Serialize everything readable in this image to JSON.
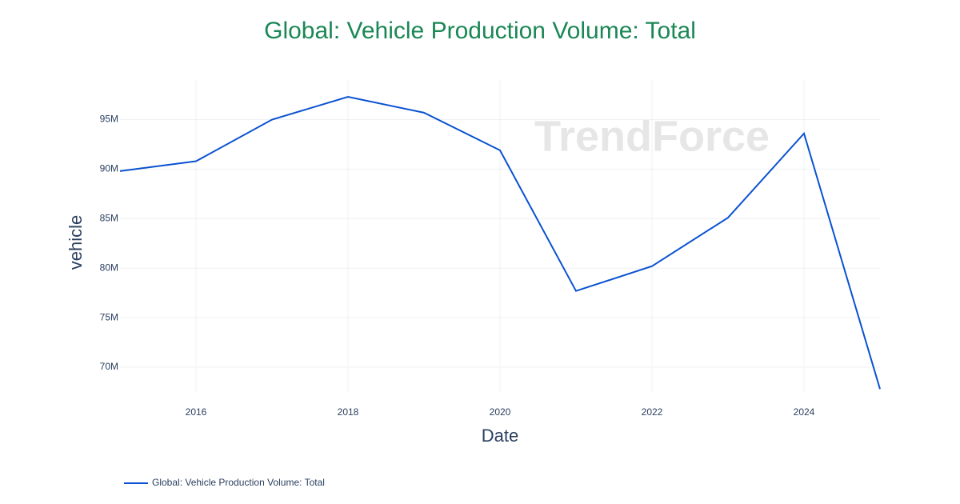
{
  "chart_data": {
    "type": "line",
    "title": "Global: Vehicle Production Volume: Total",
    "x_label": "Date",
    "y_label": "vehicle",
    "watermark": "TrendForce",
    "x": [
      2015,
      2016,
      2017,
      2018,
      2019,
      2020,
      2021,
      2022,
      2023,
      2024,
      2025
    ],
    "series": [
      {
        "name": "Global: Vehicle Production Volume: Total",
        "color": "#0a52d1",
        "values": [
          89800000,
          90800000,
          95000000,
          97300000,
          95700000,
          91900000,
          77700000,
          80200000,
          85100000,
          93600000,
          67800000
        ]
      }
    ],
    "xlim": [
      2015,
      2025
    ],
    "xticks": [
      2016,
      2018,
      2020,
      2022,
      2024
    ],
    "ylim": [
      67500000,
      99000000
    ],
    "yticks": [
      {
        "value": 70000000,
        "label": "70M"
      },
      {
        "value": 75000000,
        "label": "75M"
      },
      {
        "value": 80000000,
        "label": "80M"
      },
      {
        "value": 85000000,
        "label": "85M"
      },
      {
        "value": 90000000,
        "label": "90M"
      },
      {
        "value": 95000000,
        "label": "95M"
      }
    ],
    "grid": true,
    "legend": "bottom-left"
  }
}
